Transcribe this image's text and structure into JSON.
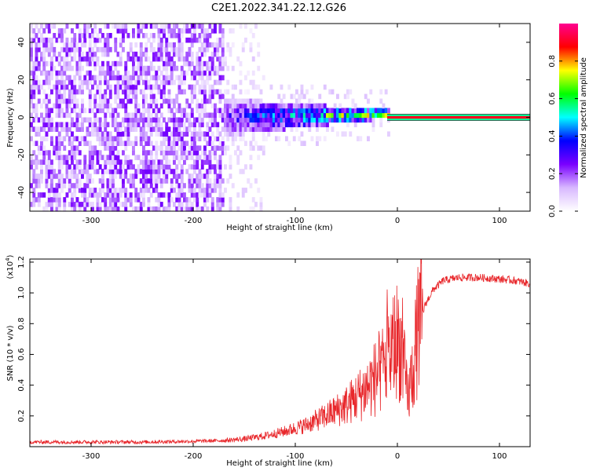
{
  "title": "C2E1.2022.341.22.12.G26",
  "chart_data": [
    {
      "type": "heatmap",
      "xlabel": "Height of straight line (km)",
      "ylabel": "Frequency (Hz)",
      "xlim": [
        -360,
        130
      ],
      "ylim": [
        -50,
        50
      ],
      "x_ticks": [
        -300,
        -200,
        -100,
        0,
        100
      ],
      "y_ticks": [
        -40,
        -20,
        0,
        20,
        40
      ],
      "colorbar": {
        "label": "Normalized spectral amplitude",
        "range": [
          0.0,
          1.0
        ],
        "ticks": [
          0.0,
          0.2,
          0.4,
          0.6,
          0.8
        ],
        "colors": [
          "#ffffff",
          "#d8b8ff",
          "#7a00ff",
          "#0000ff",
          "#00ffff",
          "#00ff00",
          "#ffff00",
          "#ff0000",
          "#ff0090"
        ]
      },
      "regions": [
        {
          "x_range": [
            -360,
            -170
          ],
          "freq_spread": 50,
          "amplitude": 0.15,
          "note": "broadband noise"
        },
        {
          "x_range": [
            -170,
            -130
          ],
          "freq_spread": 50,
          "amplitude": 0.05
        },
        {
          "x_range": [
            -170,
            -10
          ],
          "freq_center": 0,
          "freq_spread_start": 10,
          "freq_spread_end": 2,
          "amplitude_start": 0.3,
          "amplitude_end": 0.8
        },
        {
          "x_range": [
            -10,
            130
          ],
          "freq_center": 0,
          "freq_spread": 0.8,
          "amplitude": 0.9,
          "note": "narrow line"
        }
      ]
    },
    {
      "type": "line",
      "xlabel": "Height of straight line (km)",
      "ylabel": "SNR (10 * v/v)",
      "y_scale_label": "(x10",
      "y_scale_exp": "4",
      "y_scale_suffix": ")",
      "xlim": [
        -360,
        130
      ],
      "ylim": [
        0.0,
        1.22
      ],
      "x_ticks": [
        -300,
        -200,
        -100,
        0,
        100
      ],
      "y_ticks": [
        0.2,
        0.4,
        0.6,
        0.8,
        1.0,
        1.2
      ],
      "color": "#e8262a",
      "profile": [
        [
          -360,
          0.03
        ],
        [
          -300,
          0.03
        ],
        [
          -250,
          0.03
        ],
        [
          -200,
          0.035
        ],
        [
          -170,
          0.04
        ],
        [
          -150,
          0.05
        ],
        [
          -130,
          0.07
        ],
        [
          -110,
          0.1
        ],
        [
          -90,
          0.14
        ],
        [
          -70,
          0.2
        ],
        [
          -50,
          0.27
        ],
        [
          -35,
          0.35
        ],
        [
          -25,
          0.42
        ],
        [
          -15,
          0.5
        ],
        [
          -8,
          0.6
        ],
        [
          0,
          0.7
        ],
        [
          5,
          0.6
        ],
        [
          10,
          0.3
        ],
        [
          15,
          0.5
        ],
        [
          20,
          0.75
        ],
        [
          27,
          0.92
        ],
        [
          35,
          1.02
        ],
        [
          45,
          1.08
        ],
        [
          60,
          1.1
        ],
        [
          80,
          1.1
        ],
        [
          100,
          1.09
        ],
        [
          115,
          1.08
        ],
        [
          130,
          1.06
        ]
      ]
    }
  ]
}
